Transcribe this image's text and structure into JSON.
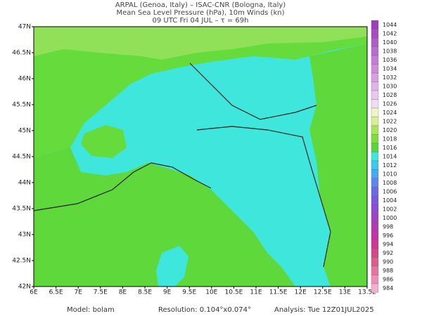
{
  "header": {
    "lines": [
      "ARPAL (Genoa, Italy)  –  ISAC-CNR (Bologna, Italy)",
      "Mean Sea Level Pressure (hPa), 10m Winds (kn)",
      "09 UTC Fri 04 JUL  –  τ = 69h"
    ]
  },
  "map": {
    "lon_labels": [
      "6E",
      "6.5E",
      "7E",
      "7.5E",
      "8E",
      "8.5E",
      "9E",
      "9.5E",
      "10E",
      "10.5E",
      "11E",
      "11.5E",
      "12E",
      "12.5E",
      "13E",
      "13.5E"
    ],
    "lat_labels": [
      "47N",
      "46.5N",
      "46N",
      "45.5N",
      "45N",
      "44.5N",
      "44N",
      "43.5N",
      "43N",
      "42.5N",
      "42N"
    ]
  },
  "colorbar": {
    "levels": [
      1044,
      1042,
      1040,
      1038,
      1036,
      1034,
      1032,
      1030,
      1028,
      1026,
      1024,
      1022,
      1020,
      1018,
      1016,
      1014,
      1012,
      1010,
      1008,
      1006,
      1004,
      1002,
      1000,
      998,
      996,
      994,
      992,
      990,
      988,
      986,
      984
    ],
    "colors": [
      "#9c3fb8",
      "#a64dc0",
      "#b05cc8",
      "#ba6cd0",
      "#c47cd6",
      "#ce8ddc",
      "#d8a0e2",
      "#e0b4e8",
      "#e8c8ee",
      "#f0dcf2",
      "#f2f2c8",
      "#d8f090",
      "#a8e460",
      "#80dc40",
      "#58d838",
      "#3ee6dc",
      "#3cc8ec",
      "#48a8f0",
      "#5a88ee",
      "#6a6ae6",
      "#7c58dc",
      "#8e4ad0",
      "#a040c4",
      "#b238b4",
      "#c034a4",
      "#cc3894",
      "#d44888",
      "#dc5c90",
      "#e474a0",
      "#ec90b8",
      "#f2b0d0"
    ]
  },
  "footer": {
    "model": "Model: bolam",
    "resolution": "Resolution: 0.104°x0.074°",
    "analysis": "Analysis: Tue 12Z01JUL2025"
  }
}
